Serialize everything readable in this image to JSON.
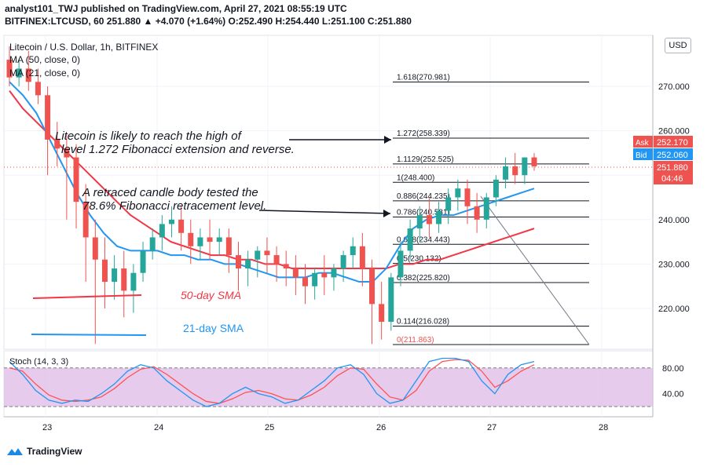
{
  "header": {
    "line1": "analyst101_TWJ published on TradingView.com, April 27, 2021 08:55:19 UTC",
    "line2": "BITFINEX:LTCUSD, 60 251.880 ▲ +4.070 (+1.64%) O:252.490 H:254.440 L:251.100 C:251.880"
  },
  "legend": {
    "title": "Litecoin / U.S. Dollar, 1h, BITFINEX",
    "ma50": "MA (50, close, 0)",
    "ma21": "MA (21, close, 0)"
  },
  "currency": "USD",
  "annotations": {
    "fib_note_line1": "Litecoin is likely to reach the high of",
    "fib_note_line2": "level  1.272 Fibonacci extension and reverse.",
    "retrace_note_line1": "A retraced candle body tested the",
    "retrace_note_line2": "78.6% Fibonacci retracement level.",
    "sma50_label": "50-day SMA",
    "sma21_label": "21-day SMA"
  },
  "price_tags": {
    "ask_label": "Ask",
    "ask_value": "252.170",
    "bid_label": "Bid",
    "bid_value": "252.060",
    "last_value": "251.880",
    "countdown": "04:46"
  },
  "stoch": {
    "label": "Stoch (14, 3, 3)",
    "levels": [
      "80.00",
      "40.00"
    ]
  },
  "footer": {
    "brand": "TradingView"
  },
  "colors": {
    "up": "#26a69a",
    "down": "#ef5350",
    "ma50": "#f23645",
    "ma21": "#2196f3",
    "stoch_k": "#2196f3",
    "stoch_d": "#ff5252",
    "stoch_band": "#e1bee7"
  },
  "chart_data": {
    "type": "candlestick",
    "title": "Litecoin / U.S. Dollar, 1h, BITFINEX",
    "ylim": [
      211,
      282
    ],
    "y_ticks": [
      220,
      230,
      240,
      250,
      260,
      270
    ],
    "y_tick_labels": [
      "220.000",
      "230.000",
      "240.000",
      "",
      "260.000",
      "270.000"
    ],
    "x_tick_labels": [
      "23",
      "24",
      "25",
      "26",
      "27",
      "28"
    ],
    "fibonacci_levels": [
      {
        "ratio": "1.618",
        "value": 270.981
      },
      {
        "ratio": "1.272",
        "value": 258.339
      },
      {
        "ratio": "1.1129",
        "value": 252.525
      },
      {
        "ratio": "1",
        "value": 248.4
      },
      {
        "ratio": "0.886",
        "value": 244.235
      },
      {
        "ratio": "0.786",
        "value": 240.581
      },
      {
        "ratio": "0.618",
        "value": 234.443
      },
      {
        "ratio": "0.5",
        "value": 230.132
      },
      {
        "ratio": "0.382",
        "value": 225.82
      },
      {
        "ratio": "0.114",
        "value": 216.028
      },
      {
        "ratio": "0",
        "value": 211.863
      }
    ],
    "candles": [
      {
        "o": 276,
        "h": 279,
        "c": 272,
        "l": 270
      },
      {
        "o": 272,
        "h": 276,
        "c": 274,
        "l": 270
      },
      {
        "o": 274,
        "h": 278,
        "c": 271,
        "l": 269
      },
      {
        "o": 271,
        "h": 274,
        "c": 268,
        "l": 266
      },
      {
        "o": 268,
        "h": 270,
        "c": 258,
        "l": 250
      },
      {
        "o": 258,
        "h": 262,
        "c": 256,
        "l": 252
      },
      {
        "o": 256,
        "h": 259,
        "c": 254,
        "l": 240
      },
      {
        "o": 254,
        "h": 257,
        "c": 244,
        "l": 238
      },
      {
        "o": 244,
        "h": 248,
        "c": 236,
        "l": 226
      },
      {
        "o": 236,
        "h": 240,
        "c": 231,
        "l": 212
      },
      {
        "o": 231,
        "h": 236,
        "c": 226,
        "l": 220
      },
      {
        "o": 226,
        "h": 232,
        "c": 229,
        "l": 222
      },
      {
        "o": 229,
        "h": 233,
        "c": 224,
        "l": 218
      },
      {
        "o": 224,
        "h": 230,
        "c": 228,
        "l": 219
      },
      {
        "o": 228,
        "h": 235,
        "c": 233,
        "l": 226
      },
      {
        "o": 233,
        "h": 238,
        "c": 236,
        "l": 231
      },
      {
        "o": 236,
        "h": 241,
        "c": 239,
        "l": 233
      },
      {
        "o": 239,
        "h": 243,
        "c": 240,
        "l": 236
      },
      {
        "o": 240,
        "h": 243,
        "c": 237,
        "l": 233
      },
      {
        "o": 237,
        "h": 240,
        "c": 234,
        "l": 230
      },
      {
        "o": 234,
        "h": 238,
        "c": 236,
        "l": 231
      },
      {
        "o": 236,
        "h": 240,
        "c": 235,
        "l": 231
      },
      {
        "o": 235,
        "h": 238,
        "c": 236,
        "l": 232
      },
      {
        "o": 236,
        "h": 238,
        "c": 232,
        "l": 228
      },
      {
        "o": 232,
        "h": 235,
        "c": 229,
        "l": 224
      },
      {
        "o": 229,
        "h": 233,
        "c": 231,
        "l": 225
      },
      {
        "o": 231,
        "h": 234,
        "c": 233,
        "l": 227
      },
      {
        "o": 233,
        "h": 236,
        "c": 232,
        "l": 228
      },
      {
        "o": 232,
        "h": 234,
        "c": 230,
        "l": 226
      },
      {
        "o": 230,
        "h": 233,
        "c": 229,
        "l": 225
      },
      {
        "o": 229,
        "h": 232,
        "c": 227,
        "l": 223
      },
      {
        "o": 227,
        "h": 230,
        "c": 225,
        "l": 221
      },
      {
        "o": 225,
        "h": 229,
        "c": 228,
        "l": 222
      },
      {
        "o": 228,
        "h": 232,
        "c": 227,
        "l": 223
      },
      {
        "o": 227,
        "h": 230,
        "c": 229,
        "l": 224
      },
      {
        "o": 229,
        "h": 233,
        "c": 232,
        "l": 226
      },
      {
        "o": 232,
        "h": 236,
        "c": 234,
        "l": 229
      },
      {
        "o": 234,
        "h": 237,
        "c": 229,
        "l": 225
      },
      {
        "o": 229,
        "h": 231,
        "c": 221,
        "l": 212
      },
      {
        "o": 221,
        "h": 226,
        "c": 217,
        "l": 213
      },
      {
        "o": 217,
        "h": 228,
        "c": 227,
        "l": 215
      },
      {
        "o": 227,
        "h": 235,
        "c": 233,
        "l": 225
      },
      {
        "o": 233,
        "h": 240,
        "c": 238,
        "l": 231
      },
      {
        "o": 238,
        "h": 243,
        "c": 241,
        "l": 235
      },
      {
        "o": 241,
        "h": 245,
        "c": 239,
        "l": 236
      },
      {
        "o": 239,
        "h": 244,
        "c": 242,
        "l": 237
      },
      {
        "o": 242,
        "h": 247,
        "c": 245,
        "l": 239
      },
      {
        "o": 245,
        "h": 249,
        "c": 247,
        "l": 242
      },
      {
        "o": 247,
        "h": 249,
        "c": 243,
        "l": 239
      },
      {
        "o": 243,
        "h": 246,
        "c": 240,
        "l": 237
      },
      {
        "o": 240,
        "h": 246,
        "c": 245,
        "l": 238
      },
      {
        "o": 245,
        "h": 250,
        "c": 249,
        "l": 243
      },
      {
        "o": 249,
        "h": 254,
        "c": 252,
        "l": 247
      },
      {
        "o": 252,
        "h": 255,
        "c": 250,
        "l": 248
      },
      {
        "o": 250,
        "h": 254,
        "c": 254,
        "l": 248
      },
      {
        "o": 254,
        "h": 255,
        "c": 252,
        "l": 251
      }
    ],
    "ma50": [
      269,
      265,
      262,
      259,
      256,
      253,
      250,
      247,
      244,
      241,
      239,
      237,
      235,
      234,
      233,
      232,
      232,
      231,
      231,
      230,
      230,
      229,
      229,
      229,
      229,
      229,
      229,
      229,
      229,
      230,
      230,
      231,
      231,
      232,
      233,
      234,
      235,
      236,
      237,
      238
    ],
    "ma21": [
      271,
      268,
      264,
      258,
      252,
      246,
      241,
      237,
      234,
      233,
      233,
      233,
      232,
      232,
      231,
      231,
      230,
      230,
      229,
      228,
      227,
      227,
      227,
      228,
      228,
      227,
      226,
      226,
      229,
      234,
      238,
      240,
      241,
      241,
      242,
      243,
      244,
      245,
      246,
      247
    ],
    "stoch_k": [
      90,
      70,
      45,
      30,
      25,
      30,
      28,
      40,
      55,
      75,
      85,
      80,
      60,
      45,
      30,
      20,
      25,
      40,
      50,
      40,
      35,
      25,
      30,
      45,
      60,
      80,
      85,
      70,
      40,
      25,
      30,
      60,
      90,
      95,
      95,
      90,
      60,
      40,
      70,
      85,
      90
    ],
    "stoch_d": [
      80,
      75,
      55,
      38,
      30,
      28,
      30,
      35,
      48,
      65,
      78,
      82,
      70,
      55,
      40,
      28,
      25,
      32,
      42,
      45,
      40,
      32,
      30,
      38,
      50,
      68,
      80,
      78,
      55,
      35,
      30,
      45,
      75,
      90,
      93,
      92,
      75,
      50,
      60,
      75,
      85
    ]
  }
}
